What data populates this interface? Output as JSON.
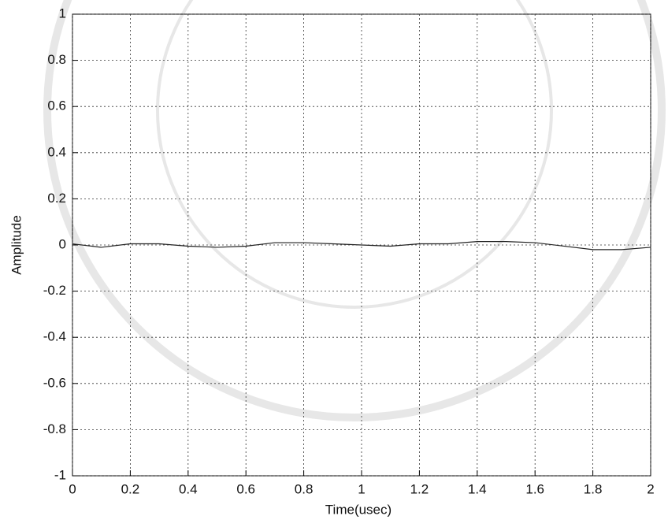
{
  "chart_data": {
    "type": "line",
    "x": [
      0,
      0.1,
      0.2,
      0.3,
      0.4,
      0.5,
      0.6,
      0.7,
      0.8,
      0.9,
      1.0,
      1.1,
      1.2,
      1.3,
      1.4,
      1.5,
      1.6,
      1.7,
      1.8,
      1.9,
      2.0
    ],
    "series": [
      {
        "color": "#222222",
        "values": [
          0.005,
          -0.01,
          0.005,
          0.005,
          -0.005,
          -0.01,
          -0.005,
          0.01,
          0.01,
          0.005,
          0,
          -0.005,
          0.005,
          0.005,
          0.015,
          0.015,
          0.01,
          -0.005,
          -0.02,
          -0.02,
          -0.01
        ]
      }
    ],
    "xlabel": "Time(usec)",
    "ylabel": "Amplitude",
    "xlim": [
      0,
      2
    ],
    "xticks": [
      0,
      0.2,
      0.4,
      0.6,
      0.8,
      1,
      1.2,
      1.4,
      1.6,
      1.8,
      2
    ],
    "ylim": [
      -1,
      1
    ],
    "yticks": [
      -1,
      -0.8,
      -0.6,
      -0.4,
      -0.2,
      0,
      0.2,
      0.4,
      0.6,
      0.8,
      1
    ],
    "grid": true
  }
}
